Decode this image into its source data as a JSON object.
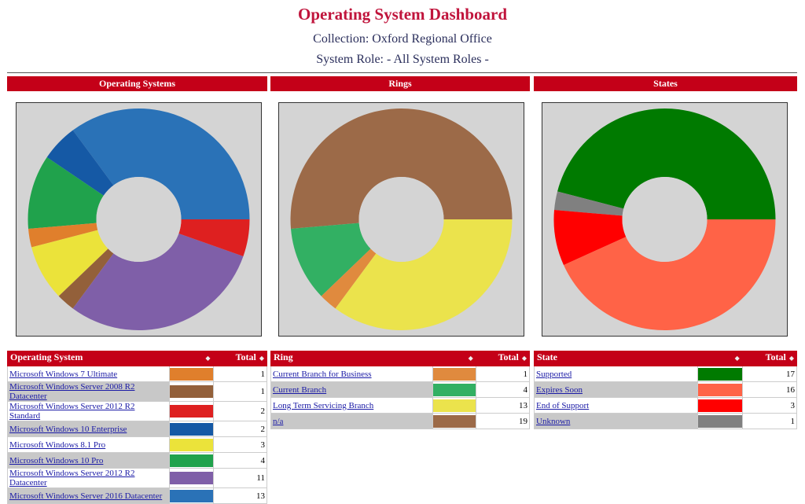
{
  "header": {
    "title": "Operating System Dashboard",
    "collection": "Collection: Oxford Regional Office",
    "system_role": "System Role: - All System Roles -"
  },
  "panels": [
    {
      "title": "Operating Systems"
    },
    {
      "title": "Rings"
    },
    {
      "title": "States"
    }
  ],
  "tables": [
    {
      "name_header": "Operating System",
      "total_header": "Total",
      "rows": [
        {
          "name": "Microsoft Windows 7 Ultimate",
          "color": "#e07f2c",
          "total": 1
        },
        {
          "name": "Microsoft Windows Server 2008 R2 Datacenter",
          "color": "#93603a",
          "total": 1
        },
        {
          "name": "Microsoft Windows Server 2012 R2 Standard",
          "color": "#de2020",
          "total": 2
        },
        {
          "name": "Microsoft Windows 10 Enterprise",
          "color": "#1559a5",
          "total": 2
        },
        {
          "name": "Microsoft Windows 8.1 Pro",
          "color": "#ebe33a",
          "total": 3
        },
        {
          "name": "Microsoft Windows 10 Pro",
          "color": "#20a24c",
          "total": 4
        },
        {
          "name": "Microsoft Windows Server 2012 R2 Datacenter",
          "color": "#7f5fa8",
          "total": 11
        },
        {
          "name": "Microsoft Windows Server 2016 Datacenter",
          "color": "#2a72b7",
          "total": 13
        }
      ]
    },
    {
      "name_header": "Ring",
      "total_header": "Total",
      "rows": [
        {
          "name": "Current Branch for Business",
          "color": "#e08a3e",
          "total": 1
        },
        {
          "name": "Current Branch",
          "color": "#32b063",
          "total": 4
        },
        {
          "name": "Long Term Servicing Branch",
          "color": "#ebe34c",
          "total": 13
        },
        {
          "name": "n/a",
          "color": "#9c6a48",
          "total": 19
        }
      ]
    },
    {
      "name_header": "State",
      "total_header": "Total",
      "rows": [
        {
          "name": "Supported",
          "color": "#007a00",
          "total": 17
        },
        {
          "name": "Expires Soon",
          "color": "#ff6347",
          "total": 16
        },
        {
          "name": "End of Support",
          "color": "#ff0000",
          "total": 3
        },
        {
          "name": "Unknown",
          "color": "#808080",
          "total": 1
        }
      ]
    }
  ],
  "chart_data": [
    {
      "type": "pie",
      "title": "Operating Systems",
      "categories": [
        "Microsoft Windows Server 2016 Datacenter",
        "Microsoft Windows 10 Enterprise",
        "Microsoft Windows 10 Pro",
        "Microsoft Windows 7 Ultimate",
        "Microsoft Windows 8.1 Pro",
        "Microsoft Windows Server 2008 R2 Datacenter",
        "Microsoft Windows Server 2012 R2 Datacenter",
        "Microsoft Windows Server 2012 R2 Standard"
      ],
      "values": [
        13,
        2,
        4,
        1,
        3,
        1,
        11,
        2
      ],
      "colors": [
        "#2a72b7",
        "#1559a5",
        "#20a24c",
        "#e07f2c",
        "#ebe33a",
        "#93603a",
        "#7f5fa8",
        "#de2020"
      ],
      "style": "donut"
    },
    {
      "type": "pie",
      "title": "Rings",
      "categories": [
        "n/a",
        "Current Branch",
        "Current Branch for Business",
        "Long Term Servicing Branch"
      ],
      "values": [
        19,
        4,
        1,
        13
      ],
      "colors": [
        "#9c6a48",
        "#32b063",
        "#e08a3e",
        "#ebe34c"
      ],
      "style": "donut"
    },
    {
      "type": "pie",
      "title": "States",
      "categories": [
        "Supported",
        "Unknown",
        "End of Support",
        "Expires Soon"
      ],
      "values": [
        17,
        1,
        3,
        16
      ],
      "colors": [
        "#007a00",
        "#808080",
        "#ff0000",
        "#ff6347"
      ],
      "style": "donut"
    }
  ]
}
